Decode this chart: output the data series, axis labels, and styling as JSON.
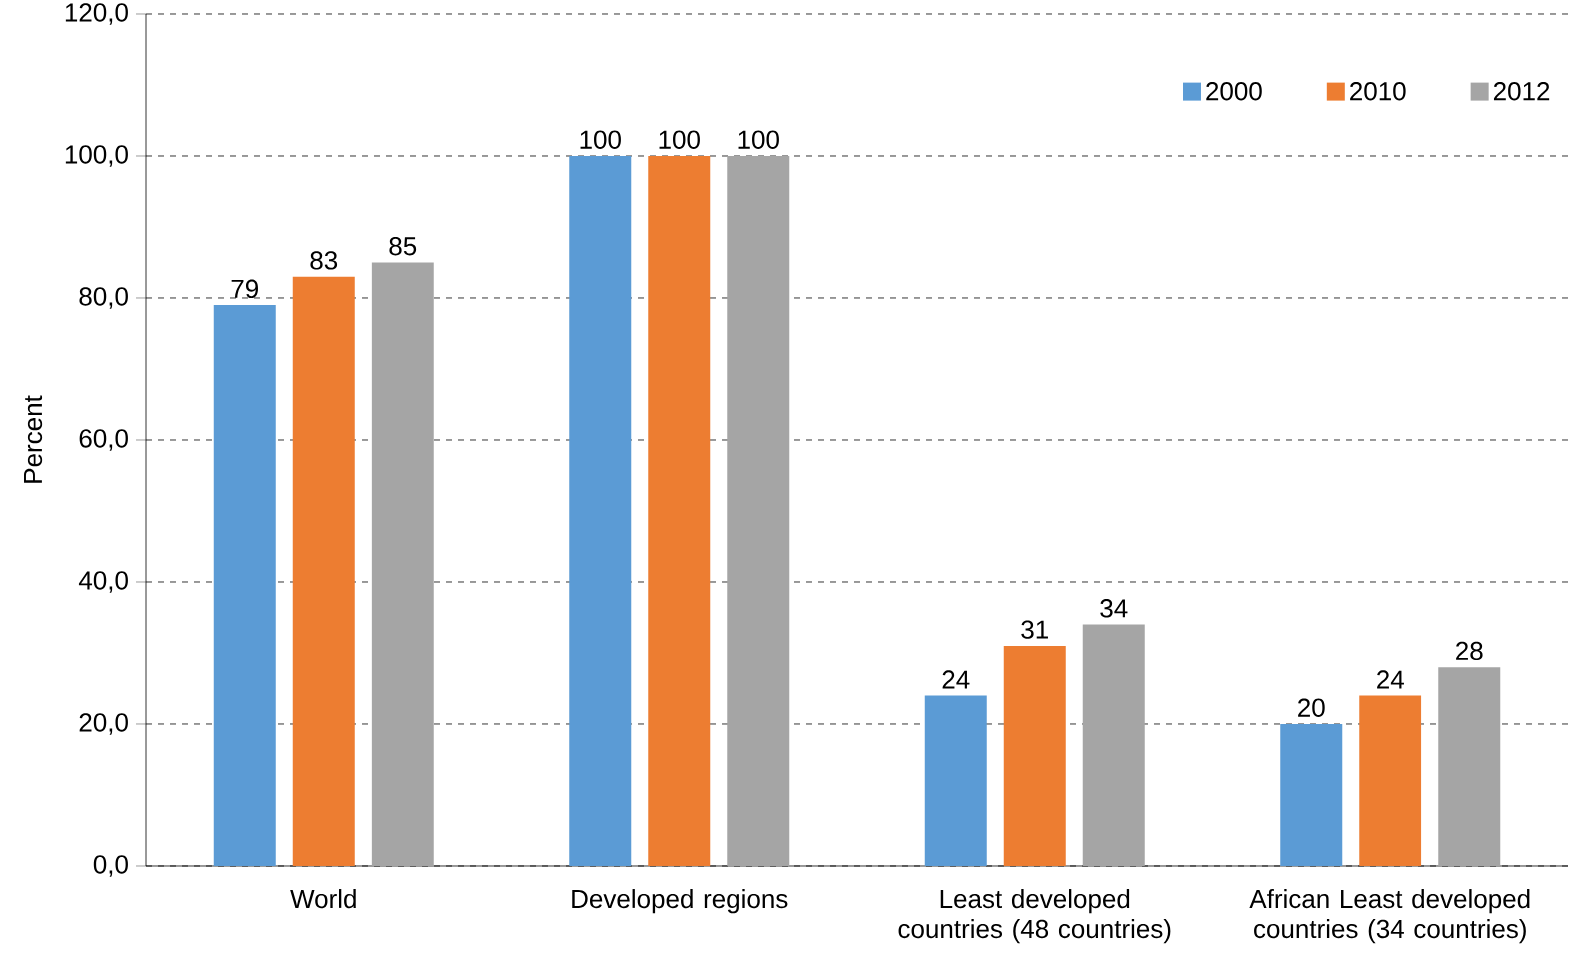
{
  "chart_data": {
    "type": "bar",
    "ylabel": "Percent",
    "categories": [
      "World",
      "Developed regions",
      "Least developed countries (48 countries)",
      "African Least developed countries (34 countries)"
    ],
    "series": [
      {
        "name": "2000",
        "color": "#5b9bd5",
        "values": [
          79,
          100,
          24,
          20
        ]
      },
      {
        "name": "2010",
        "color": "#ed7d31",
        "values": [
          83,
          100,
          31,
          24
        ]
      },
      {
        "name": "2012",
        "color": "#a5a5a5",
        "values": [
          85,
          100,
          34,
          28
        ]
      }
    ],
    "ylim": [
      0,
      120
    ],
    "yticks": [
      {
        "value": 0,
        "label": "0,0"
      },
      {
        "value": 20,
        "label": "20,0"
      },
      {
        "value": 40,
        "label": "40,0"
      },
      {
        "value": 60,
        "label": "60,0"
      },
      {
        "value": 80,
        "label": "80,0"
      },
      {
        "value": 100,
        "label": "100,0"
      },
      {
        "value": 120,
        "label": "120,0"
      }
    ],
    "grid": "y",
    "legend": "top right",
    "data_labels": true
  }
}
